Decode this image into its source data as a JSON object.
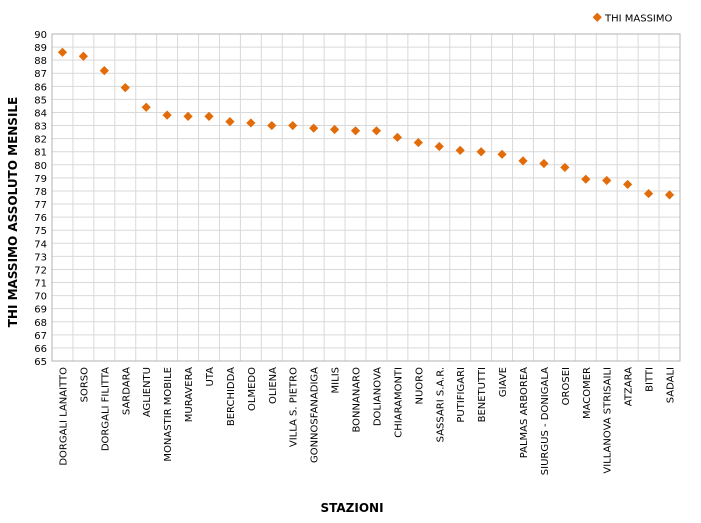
{
  "chart_data": {
    "type": "scatter",
    "title": "",
    "xlabel": "STAZIONI",
    "ylabel": "THI MASSIMO ASSOLUTO MENSILE",
    "ylim": [
      65,
      90
    ],
    "ytick_step": 1,
    "grid": true,
    "legend_position": "top-right",
    "categories": [
      "DORGALI LANAITTO",
      "SORSO",
      "DORGALI FILITTA",
      "SARDARA",
      "AGLIENTU",
      "MONASTIR MOBILE",
      "MURAVERA",
      "UTA",
      "BERCHIDDA",
      "OLMEDO",
      "OLIENA",
      "VILLA S. PIETRO",
      "GONNOSFANADIGA",
      "MILIS",
      "BONNANARO",
      "DOLIANOVA",
      "CHIARAMONTI",
      "NUORO",
      "SASSARI S.A.R.",
      "PUTIFIGARI",
      "BENETUTTI",
      "GIAVE",
      "PALMAS ARBOREA",
      "SIURGUS - DONIGALA",
      "OROSEI",
      "MACOMER",
      "VILLANOVA STRISAILI",
      "ATZARA",
      "BITTI",
      "SADALI"
    ],
    "series": [
      {
        "name": "THI MASSIMO",
        "color": "#E36C0A",
        "marker": "diamond",
        "values": [
          88.6,
          88.3,
          87.2,
          85.9,
          84.4,
          83.8,
          83.7,
          83.7,
          83.3,
          83.2,
          83.0,
          83.0,
          82.8,
          82.7,
          82.6,
          82.6,
          82.1,
          81.7,
          81.4,
          81.1,
          81.0,
          80.8,
          80.3,
          80.1,
          79.8,
          78.9,
          78.8,
          78.5,
          77.8,
          77.7
        ]
      }
    ]
  }
}
